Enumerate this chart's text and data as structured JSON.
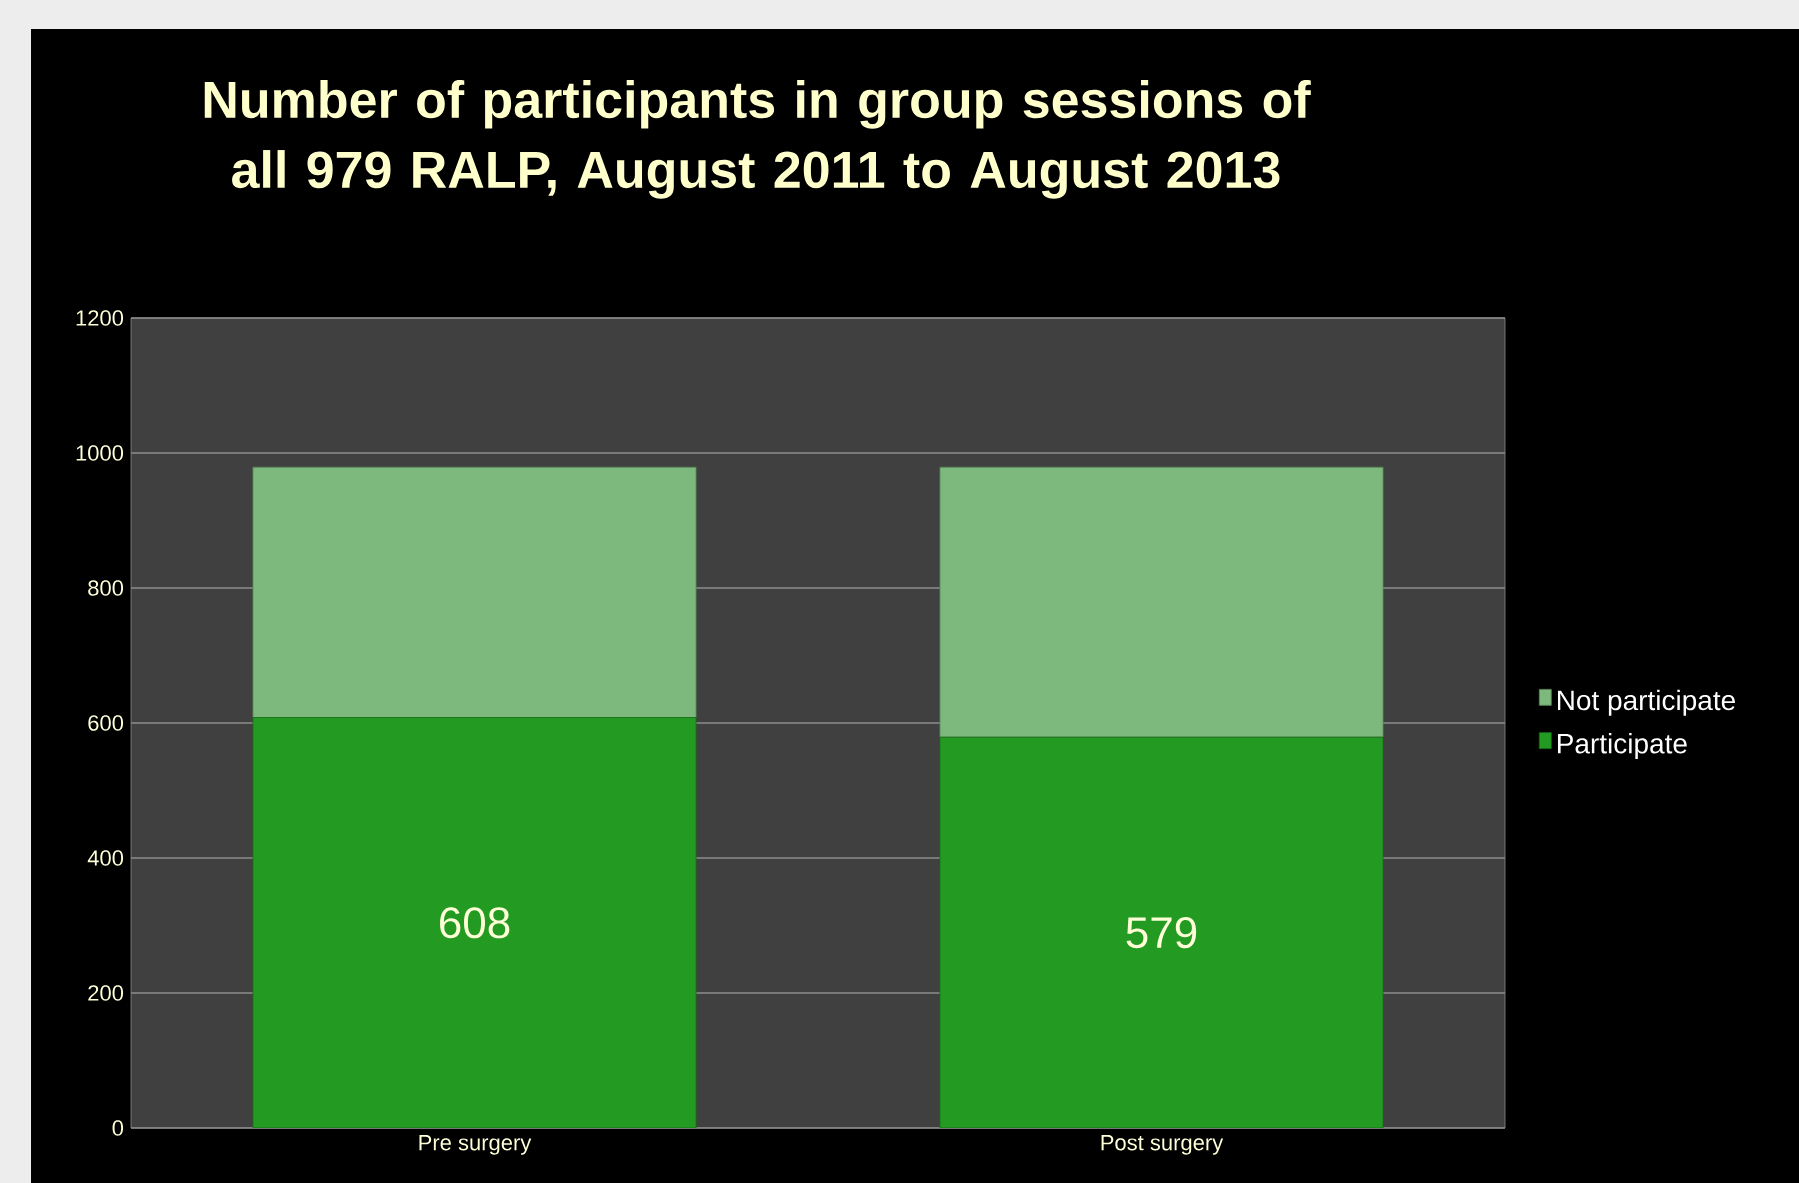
{
  "chart_data": {
    "type": "bar",
    "stacked": true,
    "title": "Number of participants in group sessions of all 979 RALP, August 2011 to August 2013",
    "categories": [
      "Pre surgery",
      "Post surgery"
    ],
    "series": [
      {
        "name": "Participate",
        "color": "#239b23",
        "values": [
          608,
          579
        ],
        "value_labels": [
          "608",
          "579"
        ]
      },
      {
        "name": "Not participate",
        "color": "#7db87d",
        "values": [
          371,
          400
        ]
      }
    ],
    "ylim": [
      0,
      1200
    ],
    "yticks": [
      0,
      200,
      400,
      600,
      800,
      1000,
      1200
    ],
    "grid": "y",
    "legend": "right"
  }
}
